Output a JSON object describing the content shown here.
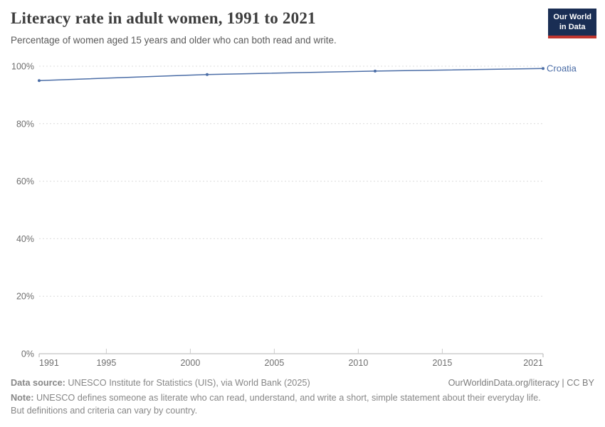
{
  "header": {
    "title": "Literacy rate in adult women, 1991 to 2021",
    "subtitle": "Percentage of women aged 15 years and older who can both read and write.",
    "logo": {
      "line1": "Our World",
      "line2": "in Data"
    }
  },
  "chart_data": {
    "type": "line",
    "title": "Literacy rate in adult women, 1991 to 2021",
    "series": [
      {
        "name": "Croatia",
        "x": [
          1991,
          2001,
          2011,
          2021
        ],
        "values": [
          95.0,
          97.1,
          98.3,
          99.2
        ]
      }
    ],
    "x_ticks": [
      1991,
      1995,
      2000,
      2005,
      2010,
      2015,
      2021
    ],
    "y_ticks": [
      0,
      20,
      40,
      60,
      80,
      100
    ],
    "y_tick_suffix": "%",
    "xlim": [
      1991,
      2021
    ],
    "ylim": [
      0,
      100
    ],
    "grid": "dashed-horizontal",
    "legend_position": "right-of-line",
    "line_color": "#4c6ea7",
    "colors": {
      "logo_background": "#1a2e54",
      "logo_accent": "#c0362f",
      "gridline": "#dcdcdc",
      "axis": "#b3b3b3",
      "tick_label": "#6e6e6e"
    }
  },
  "footer": {
    "source_label": "Data source:",
    "source_text": " UNESCO Institute for Statistics (UIS), via World Bank (2025)",
    "link_text": "OurWorldinData.org/literacy | CC BY",
    "note_label": "Note:",
    "note_text": " UNESCO defines someone as literate who can read, understand, and write a short, simple statement about their everyday life. But definitions and criteria can vary by country."
  }
}
